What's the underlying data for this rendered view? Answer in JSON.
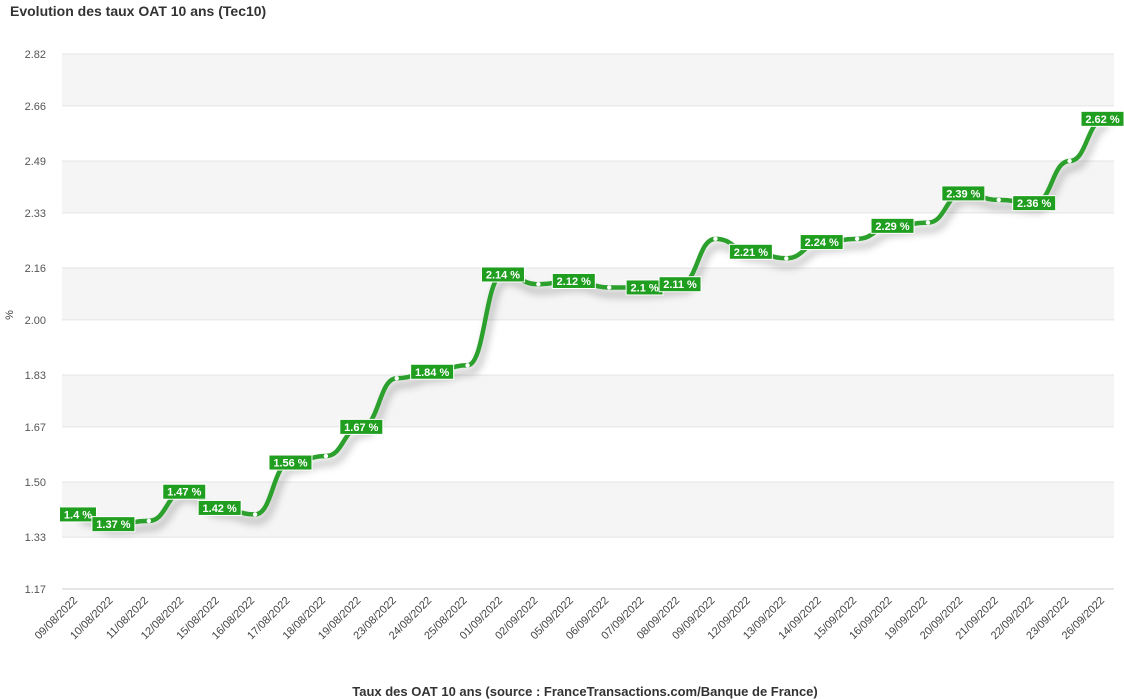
{
  "chart_data": {
    "type": "line",
    "title": "Evolution des taux OAT 10 ans (Tec10)",
    "ylabel": "%",
    "xlabel": "",
    "source": "Taux des OAT 10 ans (source : FranceTransactions.com/Banque de France)",
    "ylim": [
      1.17,
      2.82
    ],
    "yticks": [
      "2.82",
      "2.66",
      "2.49",
      "2.33",
      "2.16",
      "2.00",
      "1.83",
      "1.67",
      "1.50",
      "1.33",
      "1.17"
    ],
    "grid": "horizontal alternating bands",
    "legend": "none",
    "line_color": "#2ca02c",
    "label_color": "#1f9e1f",
    "categories": [
      "09/08/2022",
      "10/08/2022",
      "11/08/2022",
      "12/08/2022",
      "15/08/2022",
      "16/08/2022",
      "17/08/2022",
      "18/08/2022",
      "19/08/2022",
      "23/08/2022",
      "24/08/2022",
      "25/08/2022",
      "01/09/2022",
      "02/09/2022",
      "05/09/2022",
      "06/09/2022",
      "07/09/2022",
      "08/09/2022",
      "09/09/2022",
      "12/09/2022",
      "13/09/2022",
      "14/09/2022",
      "15/09/2022",
      "16/09/2022",
      "19/09/2022",
      "20/09/2022",
      "21/09/2022",
      "22/09/2022",
      "23/09/2022",
      "26/09/2022"
    ],
    "values": [
      1.4,
      1.37,
      1.38,
      1.47,
      1.42,
      1.4,
      1.56,
      1.58,
      1.67,
      1.82,
      1.84,
      1.86,
      2.14,
      2.11,
      2.12,
      2.1,
      2.1,
      2.11,
      2.25,
      2.21,
      2.19,
      2.24,
      2.25,
      2.29,
      2.3,
      2.39,
      2.37,
      2.36,
      2.49,
      2.62
    ],
    "data_labels": [
      "1.4 %",
      "1.37 %",
      null,
      "1.47 %",
      "1.42 %",
      null,
      "1.56 %",
      null,
      "1.67 %",
      null,
      "1.84 %",
      null,
      "2.14 %",
      null,
      "2.12 %",
      null,
      "2.1 %",
      "2.11 %",
      null,
      "2.21 %",
      null,
      "2.24 %",
      null,
      "2.29 %",
      null,
      "2.39 %",
      null,
      "2.36 %",
      null,
      "2.62 %"
    ]
  }
}
